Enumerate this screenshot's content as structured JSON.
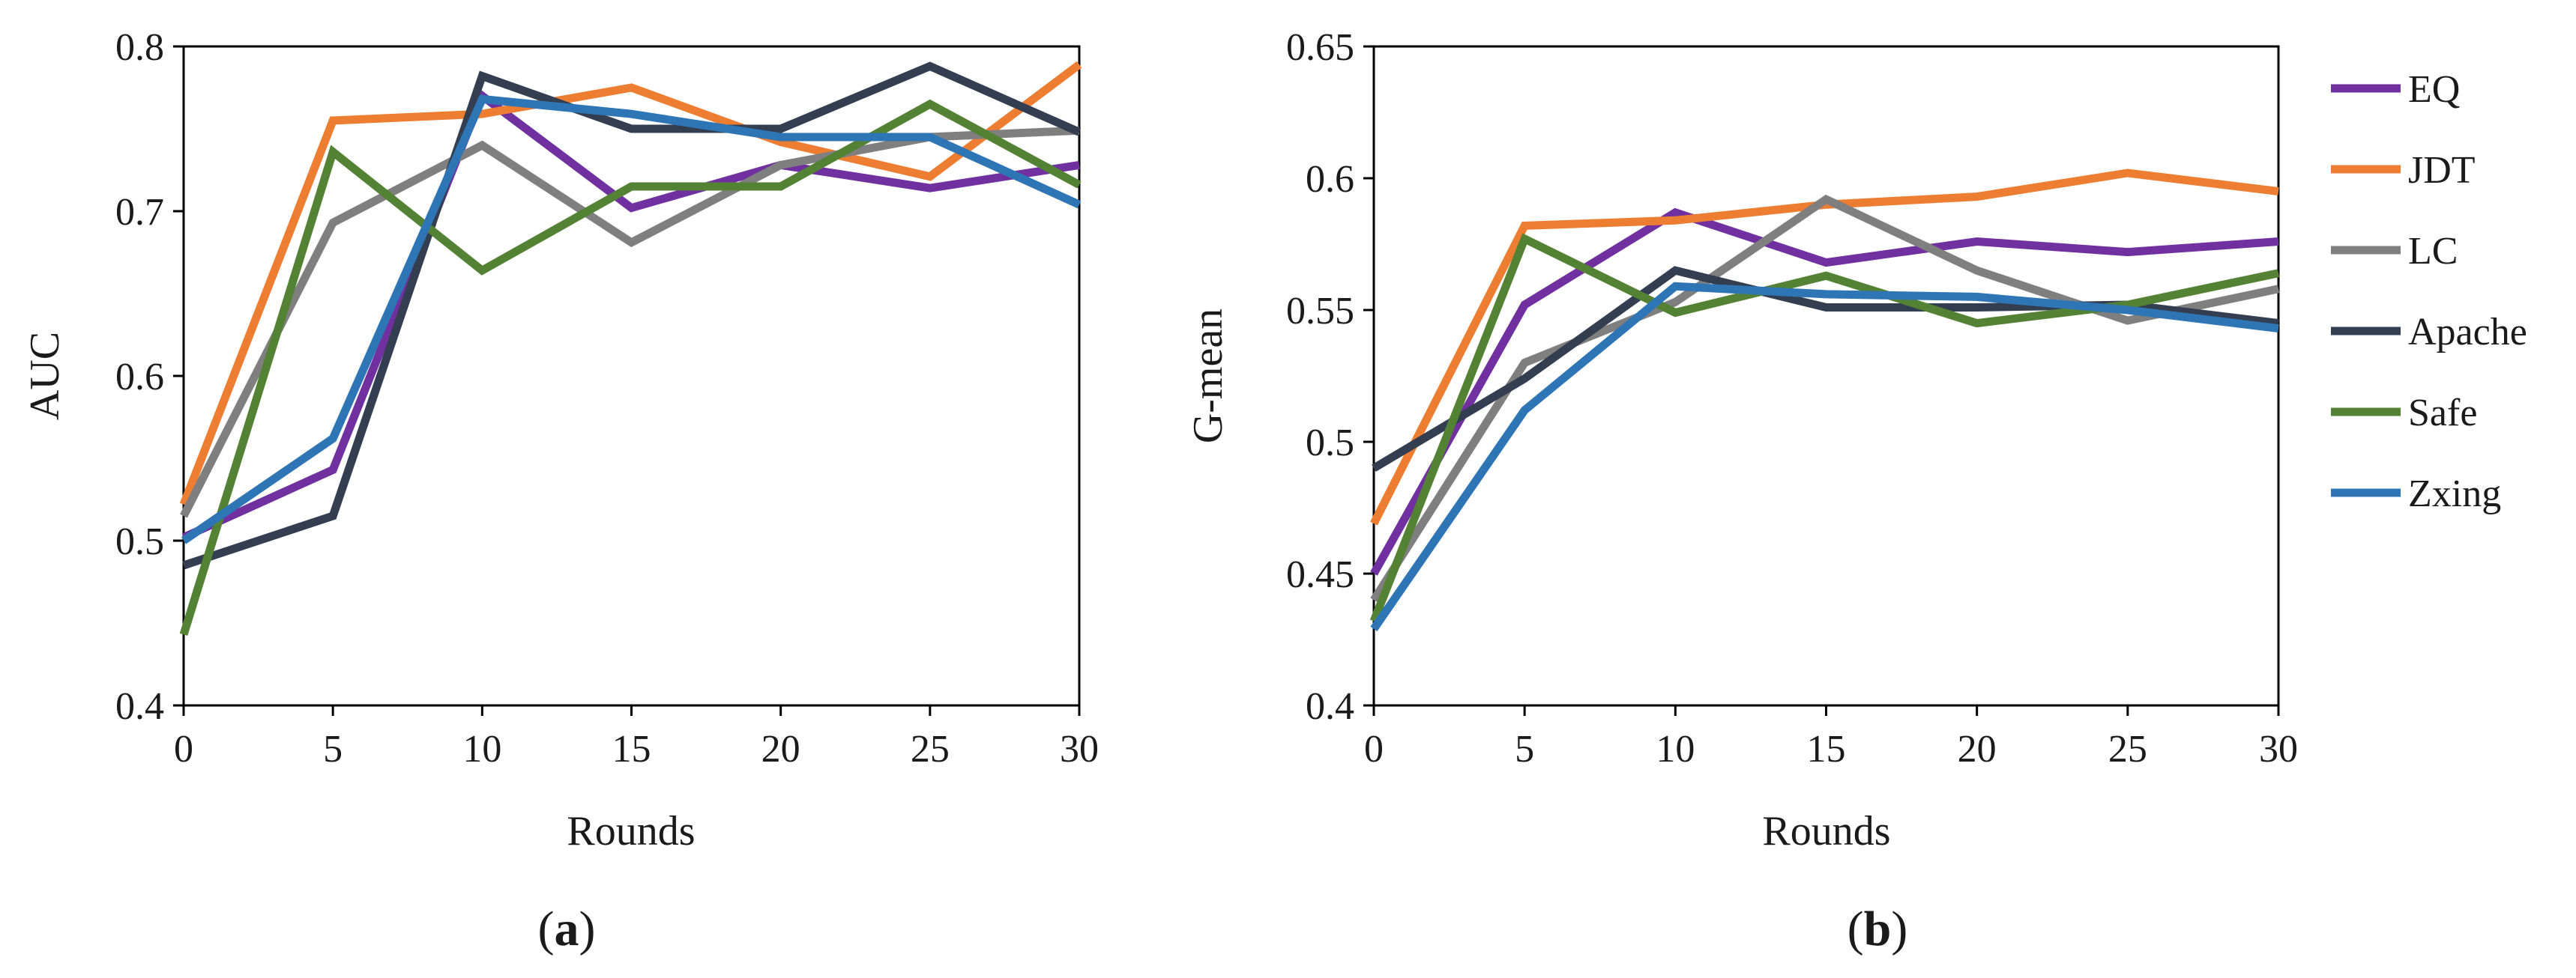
{
  "legend": {
    "placement": "right",
    "entries": [
      {
        "name": "EQ",
        "color": "#7030a0"
      },
      {
        "name": "JDT",
        "color": "#ed7d31"
      },
      {
        "name": "LC",
        "color": "#7f7f7f"
      },
      {
        "name": "Apache",
        "color": "#333f50"
      },
      {
        "name": "Safe",
        "color": "#548235"
      },
      {
        "name": "Zxing",
        "color": "#2e75b6"
      }
    ]
  },
  "chart_data": [
    {
      "type": "line",
      "panel_label": "(a)",
      "panel_letter": "a",
      "xlabel": "Rounds",
      "ylabel": "AUC",
      "x": [
        0,
        5,
        10,
        15,
        20,
        25,
        30
      ],
      "xlim": [
        0,
        30
      ],
      "ylim": [
        0.4,
        0.8
      ],
      "xticks": [
        0,
        5,
        10,
        15,
        20,
        25,
        30
      ],
      "xtick_labels": [
        "0",
        "5",
        "10",
        "15",
        "20",
        "25",
        "30"
      ],
      "yticks": [
        0.4,
        0.5,
        0.6,
        0.7,
        0.8
      ],
      "ytick_labels": [
        "0.4",
        "0.5",
        "0.6",
        "0.7",
        "0.8"
      ],
      "grid": false,
      "series": [
        {
          "name": "EQ",
          "values": [
            0.502,
            0.543,
            0.77,
            0.702,
            0.728,
            0.714,
            0.728
          ]
        },
        {
          "name": "JDT",
          "values": [
            0.522,
            0.755,
            0.759,
            0.775,
            0.742,
            0.721,
            0.789
          ]
        },
        {
          "name": "LC",
          "values": [
            0.515,
            0.693,
            0.74,
            0.681,
            0.728,
            0.745,
            0.749
          ]
        },
        {
          "name": "Apache",
          "values": [
            0.485,
            0.515,
            0.782,
            0.75,
            0.75,
            0.788,
            0.748
          ]
        },
        {
          "name": "Safe",
          "values": [
            0.443,
            0.736,
            0.664,
            0.715,
            0.715,
            0.765,
            0.716
          ]
        },
        {
          "name": "Zxing",
          "values": [
            0.5,
            0.562,
            0.768,
            0.759,
            0.745,
            0.745,
            0.704
          ]
        }
      ]
    },
    {
      "type": "line",
      "panel_label": "(b)",
      "panel_letter": "b",
      "xlabel": "Rounds",
      "ylabel": "G-mean",
      "x": [
        0,
        5,
        10,
        15,
        20,
        25,
        30
      ],
      "xlim": [
        0,
        30
      ],
      "ylim": [
        0.4,
        0.65
      ],
      "xticks": [
        0,
        5,
        10,
        15,
        20,
        25,
        30
      ],
      "xtick_labels": [
        "0",
        "5",
        "10",
        "15",
        "20",
        "25",
        "30"
      ],
      "yticks": [
        0.4,
        0.45,
        0.5,
        0.55,
        0.6,
        0.65
      ],
      "ytick_labels": [
        "0.4",
        "0.45",
        "0.5",
        "0.55",
        "0.6",
        "0.65"
      ],
      "grid": false,
      "series": [
        {
          "name": "EQ",
          "values": [
            0.45,
            0.552,
            0.587,
            0.568,
            0.576,
            0.572,
            0.576
          ]
        },
        {
          "name": "JDT",
          "values": [
            0.469,
            0.582,
            0.584,
            0.59,
            0.593,
            0.602,
            0.595
          ]
        },
        {
          "name": "LC",
          "values": [
            0.44,
            0.53,
            0.553,
            0.592,
            0.565,
            0.546,
            0.558
          ]
        },
        {
          "name": "Apache",
          "values": [
            0.49,
            0.524,
            0.565,
            0.551,
            0.551,
            0.552,
            0.545
          ]
        },
        {
          "name": "Safe",
          "values": [
            0.432,
            0.577,
            0.549,
            0.563,
            0.545,
            0.552,
            0.564
          ]
        },
        {
          "name": "Zxing",
          "values": [
            0.429,
            0.512,
            0.559,
            0.556,
            0.555,
            0.55,
            0.543
          ]
        }
      ]
    }
  ]
}
